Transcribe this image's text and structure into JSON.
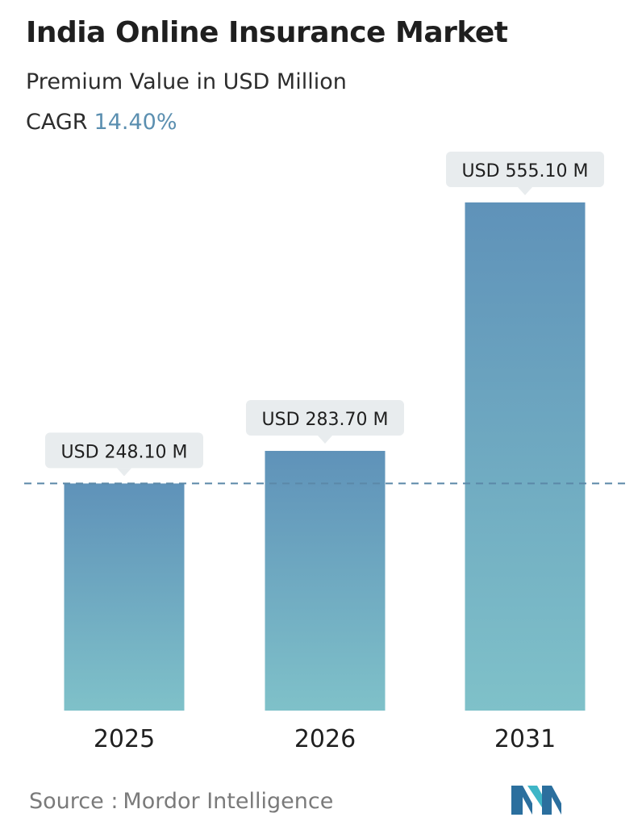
{
  "header": {
    "title": "India Online Insurance Market",
    "subtitle": "Premium Value in USD Million",
    "cagr_label": "CAGR",
    "cagr_value": "14.40%"
  },
  "footer": {
    "source_label": "Source :",
    "source_name": "Mordor Intelligence"
  },
  "colors": {
    "bar_top": "#5f92b9",
    "bar_bottom": "#7fc1c9",
    "callout_bg": "#e8ecee",
    "reference_line": "#5b88a8",
    "accent": "#5b8fb0"
  },
  "icons": {
    "logo": "mordor-intelligence-logo"
  },
  "chart_data": {
    "type": "bar",
    "categories": [
      "2025",
      "2026",
      "2031"
    ],
    "values": [
      248.1,
      283.7,
      555.1
    ],
    "data_labels": [
      "USD 248.10 M",
      "USD 283.70 M",
      "USD 555.10 M"
    ],
    "title": "India Online Insurance Market",
    "subtitle": "Premium Value in USD Million",
    "ylim": [
      0,
      555.1
    ],
    "reference_line_value": 248.1,
    "grid": false,
    "legend": "none"
  }
}
